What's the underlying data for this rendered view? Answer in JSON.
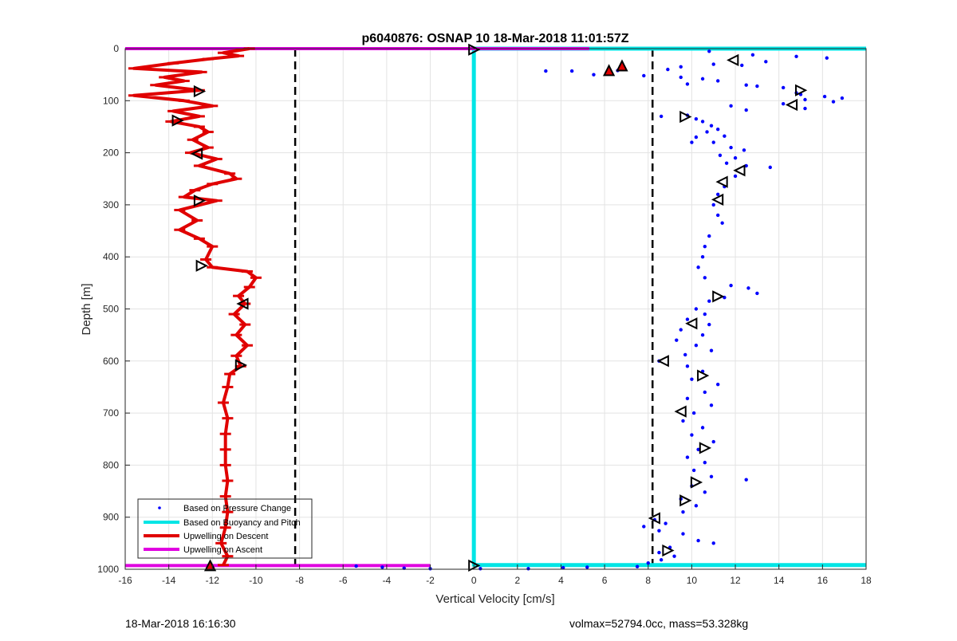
{
  "chart_data": {
    "type": "scatter",
    "title": "p6040876: OSNAP 10 18-Mar-2018 11:01:57Z",
    "xlabel": "Vertical Velocity [cm/s]",
    "ylabel": "Depth [m]",
    "xlim": [
      -16,
      18
    ],
    "ylim": [
      1000,
      0
    ],
    "y_reversed": true,
    "grid": true,
    "x_ticks": [
      "-16",
      "-14",
      "-12",
      "-10",
      "-8",
      "-6",
      "-4",
      "-2",
      "0",
      "2",
      "4",
      "6",
      "8",
      "10",
      "12",
      "14",
      "16",
      "18"
    ],
    "y_ticks": [
      "0",
      "100",
      "200",
      "300",
      "400",
      "500",
      "600",
      "700",
      "800",
      "900",
      "1000"
    ],
    "legend_position": "bottom-left",
    "legend": [
      "Based on Pressure Change",
      "Based on Buoyancy and Pitch",
      "Upwelling on Descent",
      "Upwelling on Ascent"
    ],
    "reference_lines": {
      "x": [
        -8.2,
        8.2
      ],
      "style": "dashed",
      "color": "#000000"
    },
    "colors": {
      "pressure": "#0000ff",
      "buoyancy": "#00e5e5",
      "descent": "#e00000",
      "ascent": "#e000e0",
      "reference": "#000000"
    },
    "series": [
      {
        "name": "Upwelling on Descent",
        "kind": "line",
        "points": [
          [
            -10.3,
            0
          ],
          [
            -11.5,
            8
          ],
          [
            -10.8,
            14
          ],
          [
            -12.2,
            20
          ],
          [
            -13.8,
            28
          ],
          [
            -15.6,
            38
          ],
          [
            -12.5,
            45
          ],
          [
            -14.2,
            55
          ],
          [
            -13.3,
            62
          ],
          [
            -14.6,
            70
          ],
          [
            -12.6,
            80
          ],
          [
            -15.6,
            90
          ],
          [
            -13.3,
            100
          ],
          [
            -12.0,
            110
          ],
          [
            -13.8,
            120
          ],
          [
            -12.6,
            130
          ],
          [
            -13.9,
            140
          ],
          [
            -12.6,
            150
          ],
          [
            -12.2,
            160
          ],
          [
            -12.9,
            175
          ],
          [
            -12.2,
            190
          ],
          [
            -13.0,
            200
          ],
          [
            -11.8,
            212
          ],
          [
            -12.6,
            225
          ],
          [
            -11.2,
            240
          ],
          [
            -10.9,
            250
          ],
          [
            -12.0,
            260
          ],
          [
            -12.8,
            272
          ],
          [
            -13.3,
            285
          ],
          [
            -11.8,
            292
          ],
          [
            -13.5,
            310
          ],
          [
            -12.7,
            330
          ],
          [
            -13.5,
            348
          ],
          [
            -12.6,
            365
          ],
          [
            -12.0,
            380
          ],
          [
            -12.3,
            405
          ],
          [
            -12.0,
            420
          ],
          [
            -10.4,
            428
          ],
          [
            -10.0,
            440
          ],
          [
            -10.3,
            458
          ],
          [
            -10.8,
            475
          ],
          [
            -10.5,
            490
          ],
          [
            -11.0,
            510
          ],
          [
            -10.5,
            530
          ],
          [
            -10.9,
            550
          ],
          [
            -10.4,
            570
          ],
          [
            -10.9,
            590
          ],
          [
            -10.7,
            610
          ],
          [
            -11.2,
            625
          ],
          [
            -11.3,
            650
          ],
          [
            -11.5,
            680
          ],
          [
            -11.3,
            710
          ],
          [
            -11.4,
            740
          ],
          [
            -11.4,
            770
          ],
          [
            -11.4,
            800
          ],
          [
            -11.3,
            830
          ],
          [
            -11.4,
            860
          ],
          [
            -11.3,
            890
          ],
          [
            -11.4,
            920
          ],
          [
            -11.6,
            950
          ],
          [
            -11.3,
            975
          ],
          [
            -11.5,
            992
          ]
        ]
      },
      {
        "name": "Based on Pressure Change",
        "kind": "scatter",
        "points": [
          [
            10.8,
            5
          ],
          [
            12.8,
            12
          ],
          [
            14.8,
            15
          ],
          [
            16.2,
            18
          ],
          [
            13.4,
            25
          ],
          [
            11.0,
            30
          ],
          [
            12.3,
            32
          ],
          [
            9.5,
            35
          ],
          [
            8.9,
            40
          ],
          [
            3.3,
            43
          ],
          [
            4.5,
            43
          ],
          [
            6.6,
            42
          ],
          [
            5.5,
            50
          ],
          [
            7.8,
            52
          ],
          [
            9.5,
            55
          ],
          [
            10.5,
            58
          ],
          [
            11.2,
            62
          ],
          [
            9.8,
            68
          ],
          [
            12.5,
            70
          ],
          [
            13.0,
            72
          ],
          [
            14.2,
            75
          ],
          [
            14.8,
            85
          ],
          [
            15.0,
            88
          ],
          [
            16.1,
            92
          ],
          [
            16.9,
            95
          ],
          [
            15.2,
            98
          ],
          [
            16.5,
            102
          ],
          [
            14.2,
            106
          ],
          [
            11.8,
            110
          ],
          [
            15.2,
            115
          ],
          [
            12.5,
            118
          ],
          [
            9.8,
            128
          ],
          [
            8.6,
            130
          ],
          [
            10.2,
            135
          ],
          [
            10.5,
            140
          ],
          [
            10.9,
            148
          ],
          [
            11.2,
            155
          ],
          [
            10.7,
            160
          ],
          [
            11.5,
            168
          ],
          [
            10.2,
            170
          ],
          [
            11.0,
            180
          ],
          [
            10.0,
            180
          ],
          [
            11.8,
            190
          ],
          [
            12.4,
            195
          ],
          [
            11.3,
            205
          ],
          [
            12.0,
            210
          ],
          [
            11.6,
            220
          ],
          [
            12.5,
            225
          ],
          [
            13.6,
            228
          ],
          [
            12.0,
            245
          ],
          [
            11.5,
            265
          ],
          [
            11.2,
            280
          ],
          [
            11.0,
            300
          ],
          [
            11.2,
            320
          ],
          [
            11.4,
            335
          ],
          [
            10.8,
            360
          ],
          [
            10.6,
            380
          ],
          [
            10.5,
            400
          ],
          [
            10.3,
            420
          ],
          [
            10.6,
            440
          ],
          [
            11.8,
            455
          ],
          [
            12.6,
            460
          ],
          [
            13.0,
            470
          ],
          [
            11.5,
            478
          ],
          [
            10.8,
            485
          ],
          [
            10.2,
            500
          ],
          [
            10.6,
            510
          ],
          [
            9.8,
            520
          ],
          [
            10.8,
            530
          ],
          [
            9.5,
            540
          ],
          [
            10.5,
            550
          ],
          [
            9.3,
            560
          ],
          [
            10.2,
            570
          ],
          [
            10.9,
            580
          ],
          [
            9.7,
            588
          ],
          [
            8.5,
            600
          ],
          [
            9.8,
            610
          ],
          [
            10.5,
            620
          ],
          [
            10.0,
            635
          ],
          [
            11.2,
            645
          ],
          [
            10.6,
            660
          ],
          [
            9.8,
            672
          ],
          [
            10.9,
            685
          ],
          [
            10.1,
            700
          ],
          [
            9.6,
            715
          ],
          [
            10.5,
            728
          ],
          [
            10.0,
            742
          ],
          [
            11.0,
            755
          ],
          [
            10.3,
            770
          ],
          [
            9.8,
            785
          ],
          [
            10.6,
            795
          ],
          [
            10.1,
            810
          ],
          [
            10.9,
            822
          ],
          [
            12.5,
            828
          ],
          [
            10.0,
            840
          ],
          [
            10.6,
            852
          ],
          [
            9.5,
            865
          ],
          [
            10.2,
            878
          ],
          [
            9.6,
            890
          ],
          [
            8.3,
            905
          ],
          [
            8.8,
            912
          ],
          [
            7.8,
            918
          ],
          [
            8.5,
            926
          ],
          [
            9.6,
            932
          ],
          [
            10.3,
            945
          ],
          [
            11.0,
            950
          ],
          [
            9.0,
            958
          ],
          [
            8.5,
            968
          ],
          [
            9.2,
            975
          ],
          [
            8.6,
            982
          ],
          [
            8.0,
            988
          ],
          [
            -5.4,
            994
          ],
          [
            -4.2,
            996
          ],
          [
            -3.2,
            998
          ],
          [
            -2.0,
            999
          ],
          [
            2.5,
            999
          ],
          [
            4.1,
            997
          ],
          [
            5.2,
            996
          ],
          [
            7.5,
            995
          ],
          [
            0.3,
            999
          ]
        ]
      },
      {
        "name": "Based on Buoyancy and Pitch",
        "kind": "line",
        "segments": [
          [
            [
              0,
              0
            ],
            [
              0,
              995
            ]
          ],
          [
            [
              0,
              0
            ],
            [
              18,
              0
            ]
          ],
          [
            [
              0,
              992
            ],
            [
              18,
              992
            ]
          ]
        ]
      },
      {
        "name": "Upwelling on Ascent",
        "kind": "line",
        "segments": [
          [
            [
              -16,
              0
            ],
            [
              5.3,
              0
            ]
          ],
          [
            [
              -16,
              993
            ],
            [
              -2.0,
              993
            ]
          ]
        ]
      }
    ],
    "markers": {
      "triangle_right": [
        [
          -12.6,
          82
        ],
        [
          -13.6,
          138
        ],
        [
          -12.6,
          292
        ],
        [
          -12.5,
          417
        ],
        [
          -10.7,
          608
        ],
        [
          9.7,
          131
        ],
        [
          15.0,
          80
        ],
        [
          11.2,
          476
        ],
        [
          10.5,
          628
        ],
        [
          10.6,
          767
        ],
        [
          10.2,
          833
        ],
        [
          9.7,
          868
        ],
        [
          8.9,
          964
        ],
        [
          0,
          2
        ],
        [
          0,
          993
        ]
      ],
      "triangle_left": [
        [
          -12.7,
          202
        ],
        [
          -10.6,
          490
        ],
        [
          11.9,
          22
        ],
        [
          14.6,
          108
        ],
        [
          12.2,
          234
        ],
        [
          11.4,
          256
        ],
        [
          11.2,
          290
        ],
        [
          10.0,
          528
        ],
        [
          8.7,
          600
        ],
        [
          9.5,
          697
        ],
        [
          8.3,
          902
        ]
      ],
      "triangle_up_red_fill": [
        [
          -12.1,
          993
        ],
        [
          6.8,
          33
        ],
        [
          6.2,
          42
        ]
      ]
    }
  },
  "footer": {
    "left": "18-Mar-2018 16:16:30",
    "right": "volmax=52794.0cc, mass=53.328kg"
  }
}
